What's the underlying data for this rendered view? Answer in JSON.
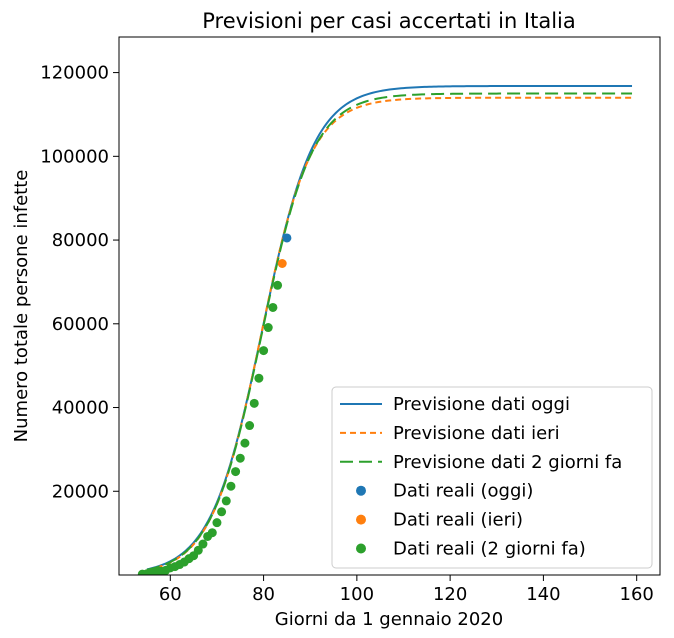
{
  "chart_data": {
    "type": "line",
    "title": "Previsioni per casi accertati in Italia",
    "xlabel": "Giorni da 1 gennaio 2020",
    "ylabel": "Numero totale persone infette",
    "xlim": [
      49,
      165
    ],
    "ylim": [
      0,
      128500
    ],
    "xticks": [
      60,
      80,
      100,
      120,
      140,
      160
    ],
    "yticks": [
      20000,
      40000,
      60000,
      80000,
      100000,
      120000
    ],
    "grid": false,
    "legend_position": "lower-right",
    "logistic_series": [
      {
        "name": "Previsione dati oggi",
        "color": "#1f77b4",
        "dash": "solid",
        "L": 116800,
        "k": 0.18,
        "x0": 79.7,
        "x_range": [
          55,
          159
        ]
      },
      {
        "name": "Previsione dati ieri",
        "color": "#ff7f0e",
        "dash": "short",
        "L": 114000,
        "k": 0.186,
        "x0": 79.4,
        "x_range": [
          55,
          159
        ]
      },
      {
        "name": "Previsione dati 2 giorni fa",
        "color": "#2ca02c",
        "dash": "long",
        "L": 115000,
        "k": 0.183,
        "x0": 79.6,
        "x_range": [
          55,
          159
        ]
      }
    ],
    "scatter_series": [
      {
        "name": "Dati reali (oggi)",
        "color": "#1f77b4",
        "x": [
          85
        ],
        "y": [
          80500
        ]
      },
      {
        "name": "Dati reali (ieri)",
        "color": "#ff7f0e",
        "x": [
          84
        ],
        "y": [
          74400
        ]
      },
      {
        "name": "Dati reali (2 giorni fa)",
        "color": "#2ca02c",
        "x": [
          54,
          55,
          56,
          57,
          58,
          59,
          60,
          61,
          62,
          63,
          64,
          65,
          66,
          67,
          68,
          69,
          70,
          71,
          72,
          73,
          74,
          75,
          76,
          77,
          78,
          79,
          80,
          81,
          82,
          83
        ],
        "y": [
          200,
          300,
          450,
          650,
          900,
          1100,
          1700,
          2000,
          2500,
          3100,
          3900,
          4600,
          5900,
          7400,
          9200,
          10100,
          12500,
          15100,
          17700,
          21200,
          24700,
          27900,
          31500,
          35700,
          41000,
          47000,
          53600,
          59100,
          63900,
          69200
        ]
      }
    ]
  }
}
